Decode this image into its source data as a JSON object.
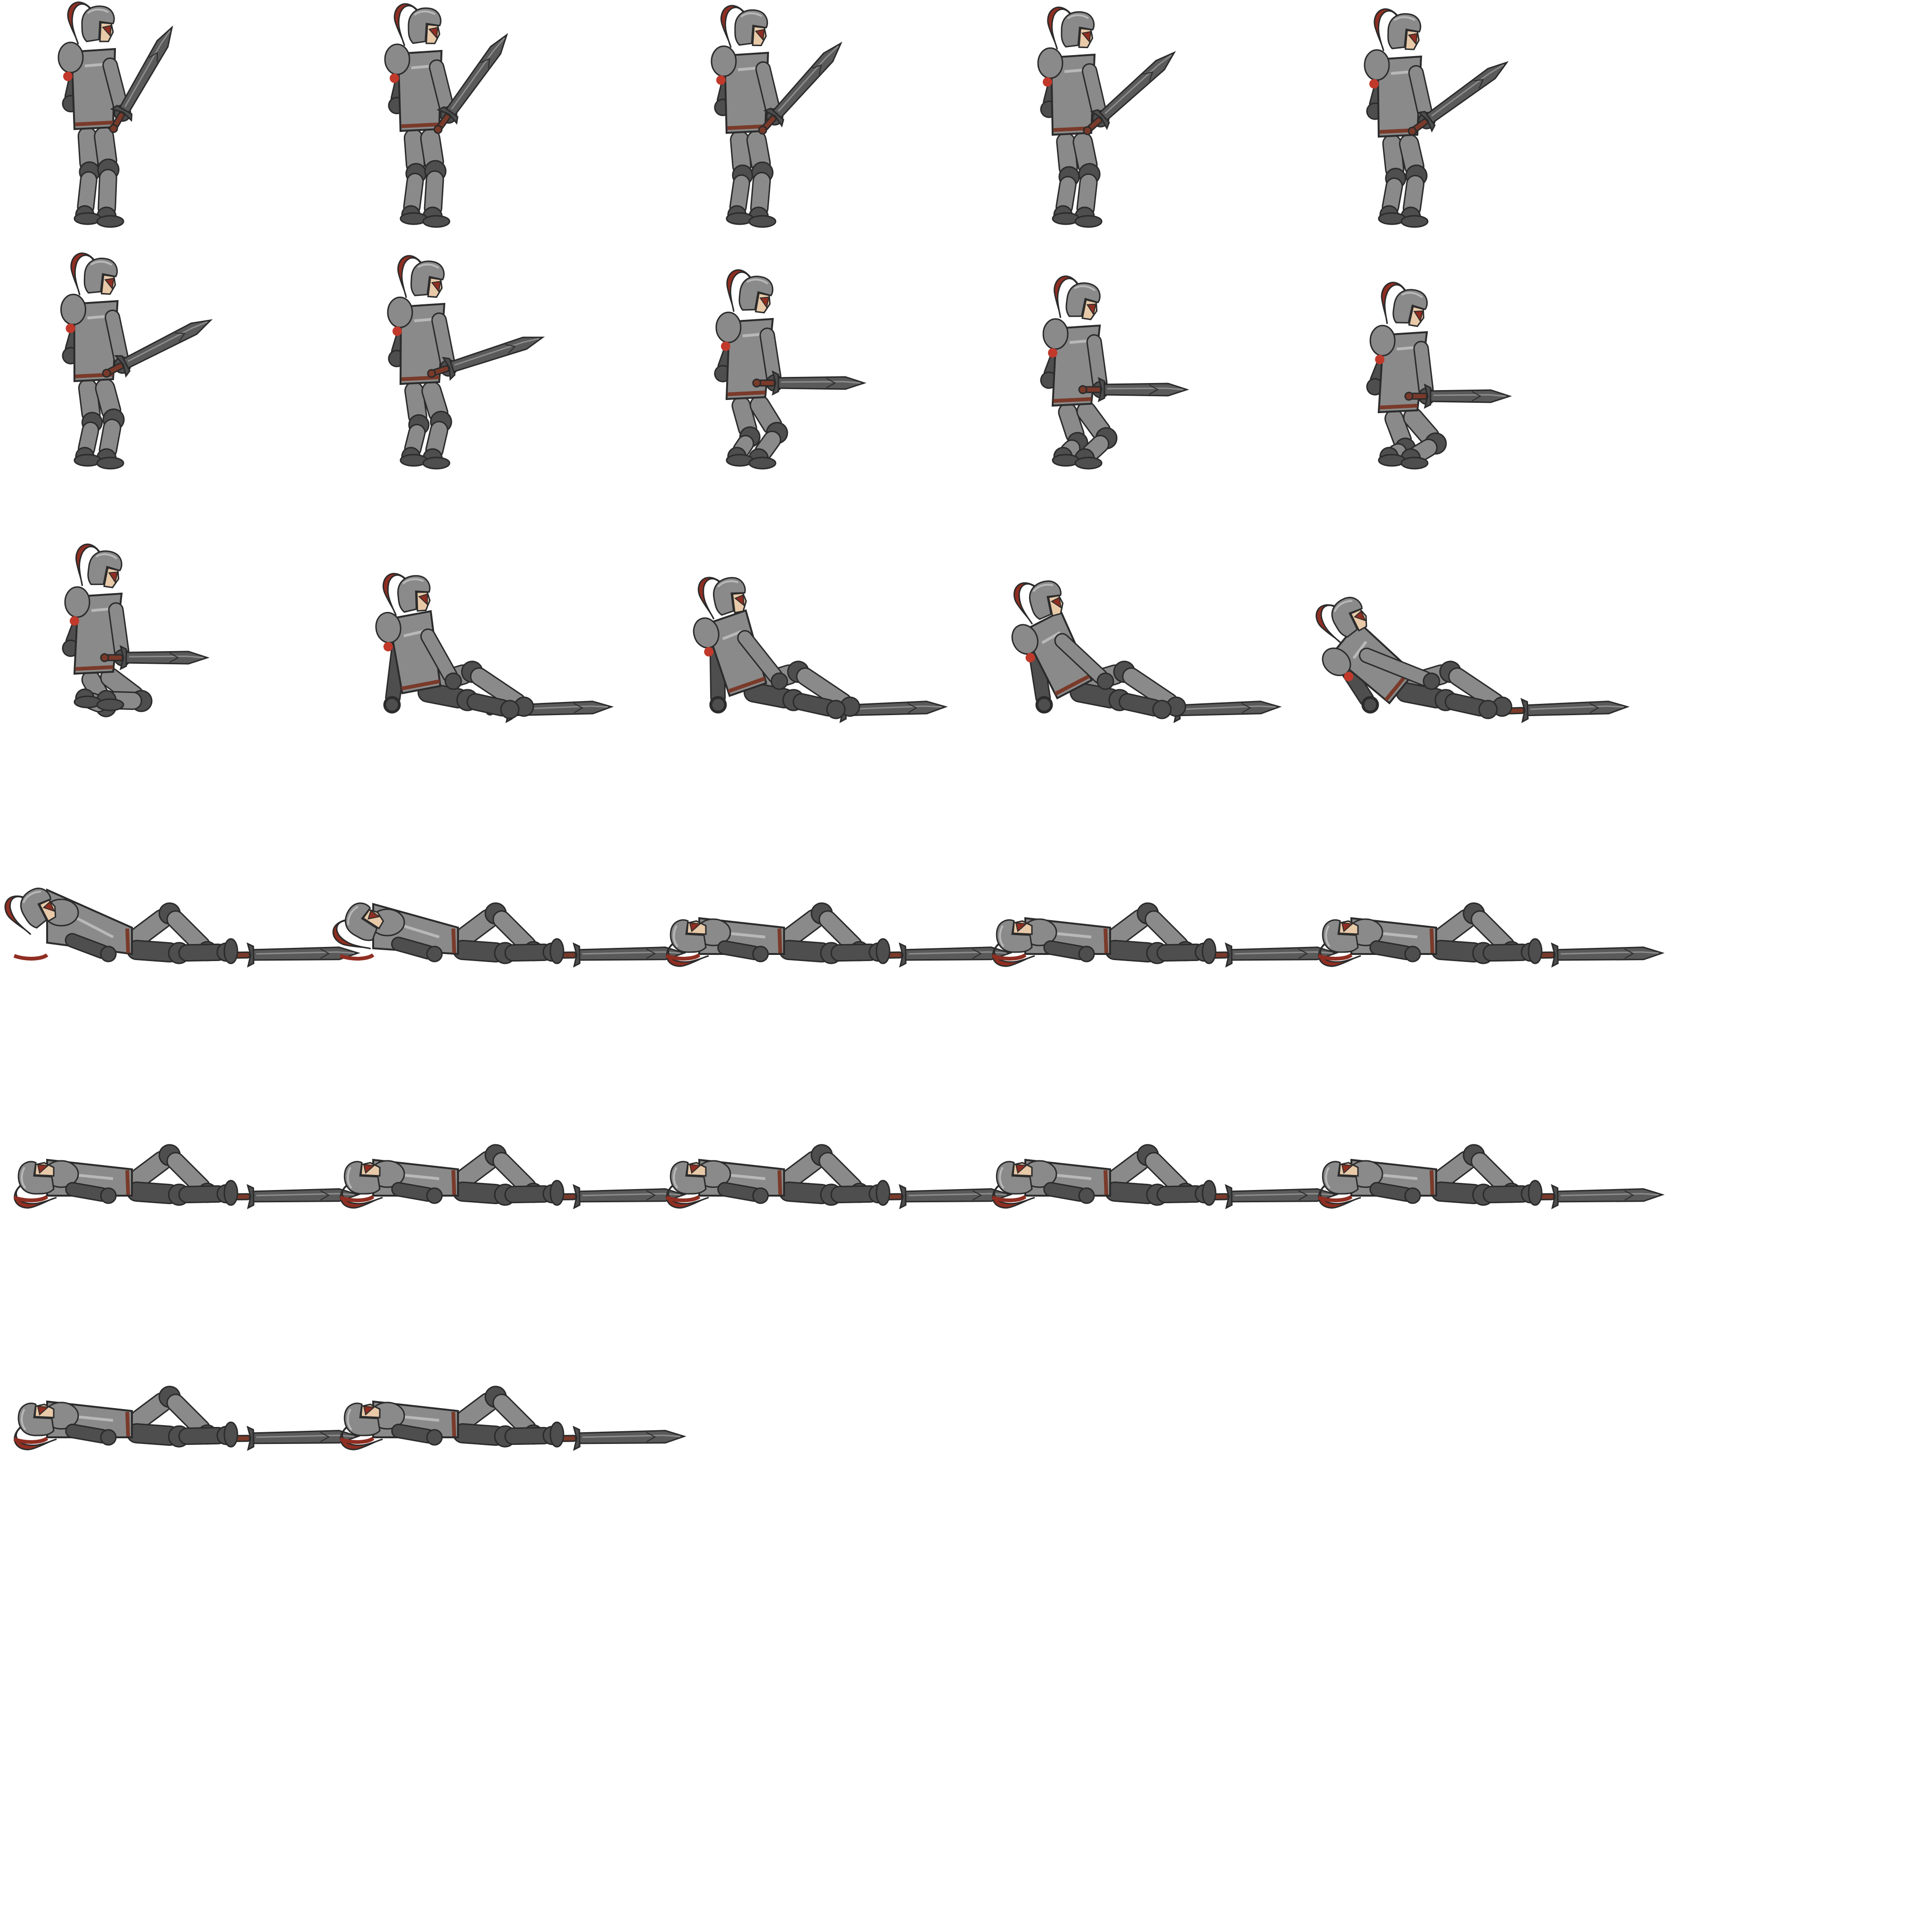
{
  "sheet": {
    "subject": "knight-death-animation",
    "frame_count": 27,
    "columns": 5,
    "frame_size": 512
  },
  "palette": {
    "background": "#ffffff",
    "armor": "#8a8a8a",
    "armor_light": "#b8b8b8",
    "armor_dark": "#4e4e4e",
    "outline": "#2b2b2b",
    "hair": "#8f2e22",
    "blood_red": "#c0392b",
    "skin": "#e8c9a8",
    "blade": "#5a5a5a",
    "blade_edge": "#8c8c8c",
    "hilt": "#7a3a2a"
  },
  "frames": [
    {
      "index": 1,
      "pose": "stand",
      "t": 0.0
    },
    {
      "index": 2,
      "pose": "stand",
      "t": 0.1
    },
    {
      "index": 3,
      "pose": "stand",
      "t": 0.2
    },
    {
      "index": 4,
      "pose": "stand",
      "t": 0.3
    },
    {
      "index": 5,
      "pose": "stand",
      "t": 0.4
    },
    {
      "index": 6,
      "pose": "stand",
      "t": 0.55
    },
    {
      "index": 7,
      "pose": "stand",
      "t": 0.7
    },
    {
      "index": 8,
      "pose": "crouch",
      "t": 0.0
    },
    {
      "index": 9,
      "pose": "crouch",
      "t": 0.35
    },
    {
      "index": 10,
      "pose": "crouch",
      "t": 0.7
    },
    {
      "index": 11,
      "pose": "kneel",
      "t": 0.0
    },
    {
      "index": 12,
      "pose": "sit",
      "t": 0.0
    },
    {
      "index": 13,
      "pose": "sit",
      "t": 0.35
    },
    {
      "index": 14,
      "pose": "sit",
      "t": 0.7
    },
    {
      "index": 15,
      "pose": "lean",
      "t": 0.0
    },
    {
      "index": 16,
      "pose": "fall",
      "t": 0.0
    },
    {
      "index": 17,
      "pose": "fall",
      "t": 0.5
    },
    {
      "index": 18,
      "pose": "lie",
      "t": 0.0
    },
    {
      "index": 19,
      "pose": "lie",
      "t": 1.0
    },
    {
      "index": 20,
      "pose": "lie",
      "t": 1.0
    },
    {
      "index": 21,
      "pose": "lie",
      "t": 1.0
    },
    {
      "index": 22,
      "pose": "lie",
      "t": 1.0
    },
    {
      "index": 23,
      "pose": "lie",
      "t": 1.0
    },
    {
      "index": 24,
      "pose": "lie",
      "t": 1.0
    },
    {
      "index": 25,
      "pose": "lie",
      "t": 1.0
    },
    {
      "index": 26,
      "pose": "lie",
      "t": 1.0
    },
    {
      "index": 27,
      "pose": "lie",
      "t": 1.0
    }
  ]
}
